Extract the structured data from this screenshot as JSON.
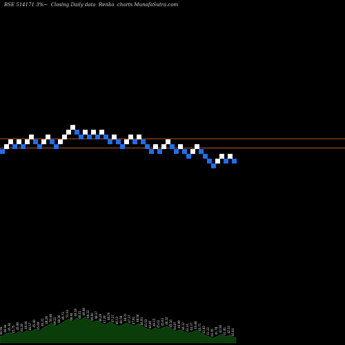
{
  "header": {
    "title": "BSE 514171 3%~  Closing Daily data  Renko  charts MunafaSutra.com"
  },
  "colors": {
    "up_brick": "#ffffff",
    "down_brick": "#1e6ef0",
    "reference_line": "#b85a1e",
    "volume_fill": "#0b3d0b",
    "volume_label": "#e0e0e0"
  },
  "chart_data": {
    "type": "renko",
    "title": "BSE 514171 3%~ Closing Daily data Renko charts MunafaSutra.com",
    "price_scale": "log",
    "brick_step_percent": 3,
    "reference_lines": [
      47.69,
      45.09
    ],
    "ylim": [
      20,
      150
    ],
    "bricks": [
      {
        "close": 44.14,
        "dir": "down"
      },
      {
        "close": 45.47,
        "dir": "up"
      },
      {
        "close": 46.83,
        "dir": "up"
      },
      {
        "close": 45.47,
        "dir": "down"
      },
      {
        "close": 46.83,
        "dir": "up"
      },
      {
        "close": 45.47,
        "dir": "down"
      },
      {
        "close": 46.83,
        "dir": "up"
      },
      {
        "close": 48.23,
        "dir": "up"
      },
      {
        "close": 46.83,
        "dir": "down"
      },
      {
        "close": 45.47,
        "dir": "down"
      },
      {
        "close": 46.83,
        "dir": "up"
      },
      {
        "close": 48.23,
        "dir": "up"
      },
      {
        "close": 46.83,
        "dir": "down"
      },
      {
        "close": 45.47,
        "dir": "down"
      },
      {
        "close": 46.83,
        "dir": "up"
      },
      {
        "close": 48.23,
        "dir": "up"
      },
      {
        "close": 49.68,
        "dir": "up"
      },
      {
        "close": 51.17,
        "dir": "up"
      },
      {
        "close": 49.68,
        "dir": "down"
      },
      {
        "close": 48.23,
        "dir": "down"
      },
      {
        "close": 49.68,
        "dir": "up"
      },
      {
        "close": 48.23,
        "dir": "down"
      },
      {
        "close": 49.68,
        "dir": "up"
      },
      {
        "close": 48.23,
        "dir": "down"
      },
      {
        "close": 49.68,
        "dir": "up"
      },
      {
        "close": 48.23,
        "dir": "down"
      },
      {
        "close": 46.83,
        "dir": "down"
      },
      {
        "close": 48.23,
        "dir": "up"
      },
      {
        "close": 46.83,
        "dir": "down"
      },
      {
        "close": 45.47,
        "dir": "down"
      },
      {
        "close": 46.83,
        "dir": "up"
      },
      {
        "close": 48.23,
        "dir": "up"
      },
      {
        "close": 46.83,
        "dir": "down"
      },
      {
        "close": 48.23,
        "dir": "up"
      },
      {
        "close": 46.83,
        "dir": "down"
      },
      {
        "close": 45.47,
        "dir": "down"
      },
      {
        "close": 44.14,
        "dir": "down"
      },
      {
        "close": 45.47,
        "dir": "up"
      },
      {
        "close": 44.14,
        "dir": "down"
      },
      {
        "close": 45.47,
        "dir": "up"
      },
      {
        "close": 46.83,
        "dir": "up"
      },
      {
        "close": 45.47,
        "dir": "down"
      },
      {
        "close": 44.14,
        "dir": "down"
      },
      {
        "close": 45.47,
        "dir": "up"
      },
      {
        "close": 44.14,
        "dir": "down"
      },
      {
        "close": 42.86,
        "dir": "down"
      },
      {
        "close": 44.14,
        "dir": "up"
      },
      {
        "close": 45.47,
        "dir": "up"
      },
      {
        "close": 44.14,
        "dir": "down"
      },
      {
        "close": 42.86,
        "dir": "down"
      },
      {
        "close": 41.61,
        "dir": "down"
      },
      {
        "close": 40.4,
        "dir": "down"
      },
      {
        "close": 41.61,
        "dir": "up"
      },
      {
        "close": 42.86,
        "dir": "up"
      },
      {
        "close": 41.61,
        "dir": "down"
      },
      {
        "close": 42.86,
        "dir": "up"
      },
      {
        "close": 41.61,
        "dir": "down"
      }
    ],
    "volume_scale": [
      0,
      1
    ],
    "volume": [
      {
        "level": 0.18,
        "label": "46.94"
      },
      {
        "level": 0.24,
        "label": "46.94"
      },
      {
        "level": 0.28,
        "label": "45.38"
      },
      {
        "level": 0.22,
        "label": "45.75"
      },
      {
        "level": 0.3,
        "label": "45.98"
      },
      {
        "level": 0.26,
        "label": "44.28"
      },
      {
        "level": 0.33,
        "label": "46.04"
      },
      {
        "level": 0.29,
        "label": "46.57"
      },
      {
        "level": 0.37,
        "label": "45.46"
      },
      {
        "level": 0.31,
        "label": "45.69"
      },
      {
        "level": 0.4,
        "label": "46.31"
      },
      {
        "level": 0.46,
        "label": "48.28"
      },
      {
        "level": 0.52,
        "label": "50.66"
      },
      {
        "level": 0.44,
        "label": "49.22"
      },
      {
        "level": 0.49,
        "label": "48.36"
      },
      {
        "level": 0.57,
        "label": "49.73"
      },
      {
        "level": 0.63,
        "label": "51.02"
      },
      {
        "level": 0.55,
        "label": "48.94"
      },
      {
        "level": 0.66,
        "label": "49.18"
      },
      {
        "level": 0.6,
        "label": "48.41"
      },
      {
        "level": 0.68,
        "label": "49.48"
      },
      {
        "level": 0.62,
        "label": "48.22"
      },
      {
        "level": 0.55,
        "label": "49.60"
      },
      {
        "level": 0.59,
        "label": "48.37"
      },
      {
        "level": 0.52,
        "label": "48.29"
      },
      {
        "level": 0.48,
        "label": "47.28"
      },
      {
        "level": 0.56,
        "label": "48.20"
      },
      {
        "level": 0.5,
        "label": "47.27"
      },
      {
        "level": 0.45,
        "label": "46.13"
      },
      {
        "level": 0.47,
        "label": "46.59"
      },
      {
        "level": 0.53,
        "label": "48.31"
      },
      {
        "level": 0.49,
        "label": "47.37"
      },
      {
        "level": 0.45,
        "label": "47.81"
      },
      {
        "level": 0.51,
        "label": "48.06"
      },
      {
        "level": 0.43,
        "label": "46.93"
      },
      {
        "level": 0.38,
        "label": "45.53"
      },
      {
        "level": 0.34,
        "label": "44.80"
      },
      {
        "level": 0.4,
        "label": "46.15"
      },
      {
        "level": 0.36,
        "label": "45.02"
      },
      {
        "level": 0.41,
        "label": "45.63"
      },
      {
        "level": 0.44,
        "label": "46.32"
      },
      {
        "level": 0.37,
        "label": "45.16"
      },
      {
        "level": 0.31,
        "label": "44.87"
      },
      {
        "level": 0.35,
        "label": "44.99"
      },
      {
        "level": 0.3,
        "label": "44.12"
      },
      {
        "level": 0.26,
        "label": "43.24"
      },
      {
        "level": 0.29,
        "label": "44.37"
      },
      {
        "level": 0.33,
        "label": "45.68"
      },
      {
        "level": 0.27,
        "label": "44.71"
      },
      {
        "level": 0.21,
        "label": "42.82"
      },
      {
        "level": 0.17,
        "label": "41.22"
      },
      {
        "level": 0.13,
        "label": "40.45"
      },
      {
        "level": 0.18,
        "label": "41.78"
      },
      {
        "level": 0.23,
        "label": "42.56"
      },
      {
        "level": 0.17,
        "label": "41.81"
      },
      {
        "level": 0.21,
        "label": "42.32"
      },
      {
        "level": 0.14,
        "label": "41.64"
      }
    ]
  }
}
